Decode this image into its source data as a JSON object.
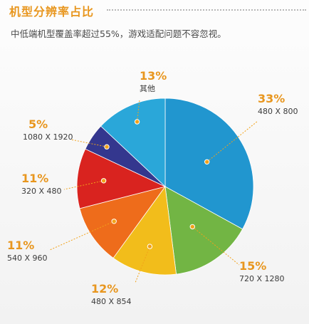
{
  "header": {
    "title": "机型分辨率占比",
    "subtitle": "中低端机型覆盖率超过55%，游戏适配问题不容忽视。"
  },
  "chart_data": {
    "type": "pie",
    "slices": [
      {
        "label": "480 X 800",
        "percent_label": "33%",
        "value": 33,
        "color": "#2196cf"
      },
      {
        "label": "720 X 1280",
        "percent_label": "15%",
        "value": 15,
        "color": "#72b544"
      },
      {
        "label": "480 X 854",
        "percent_label": "12%",
        "value": 12,
        "color": "#f2bd1b"
      },
      {
        "label": "540 X 960",
        "percent_label": "11%",
        "value": 11,
        "color": "#ee6c1b"
      },
      {
        "label": "320 X 480",
        "percent_label": "11%",
        "value": 11,
        "color": "#d9231f"
      },
      {
        "label": "1080 X 1920",
        "percent_label": "5%",
        "value": 5,
        "color": "#34378e"
      },
      {
        "label": "其他",
        "percent_label": "13%",
        "value": 13,
        "color": "#2aa7d9"
      }
    ],
    "start_angle_deg": 0,
    "direction": "clockwise"
  }
}
